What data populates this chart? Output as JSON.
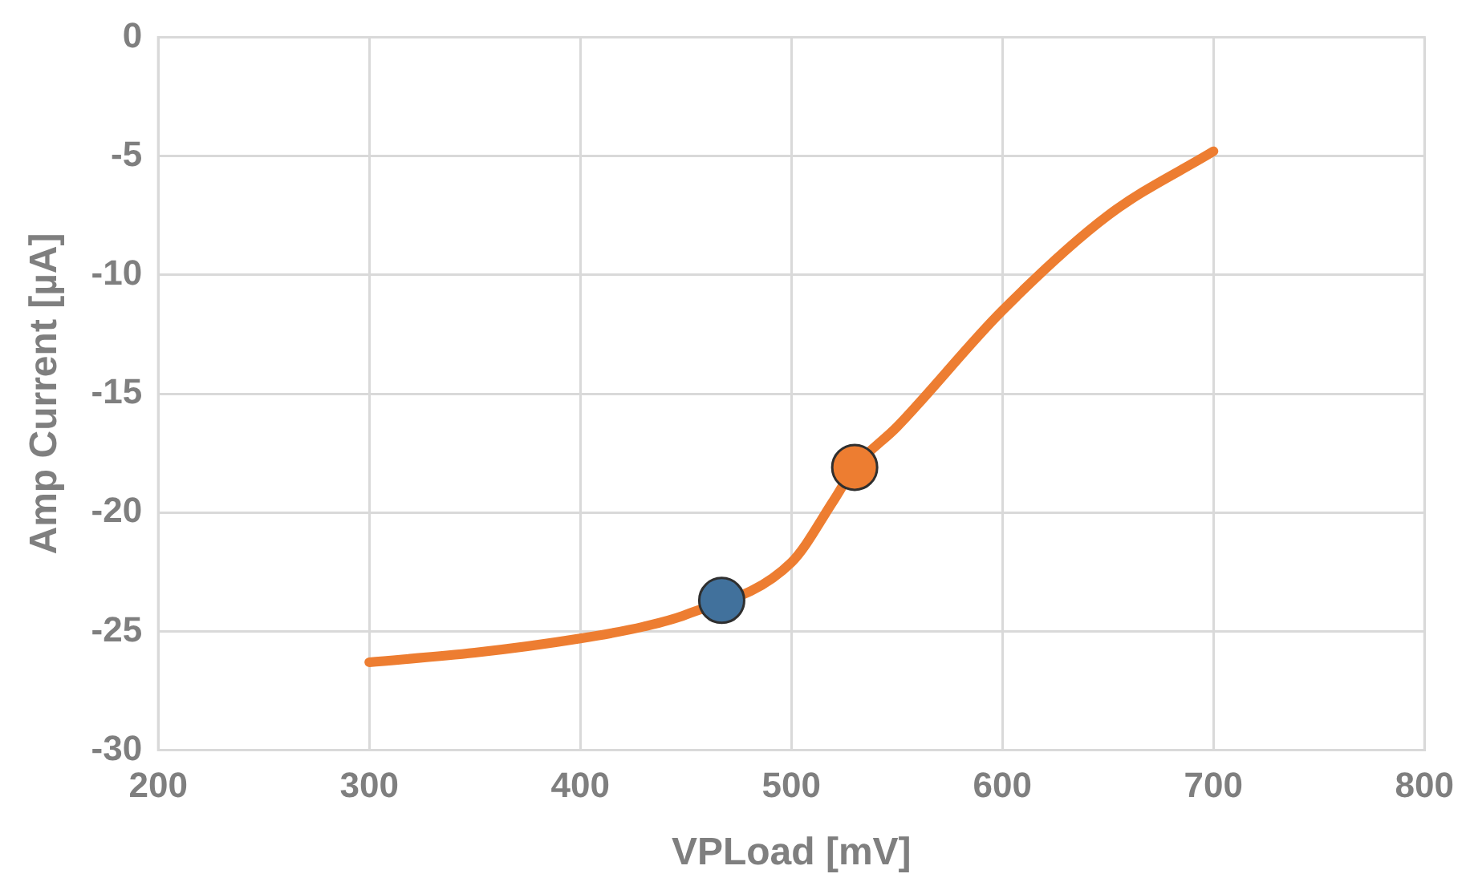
{
  "chart_data": {
    "type": "line",
    "xlabel": "VPLoad [mV]",
    "ylabel": "Amp Current [µA]",
    "xlim": [
      200,
      800
    ],
    "xticks": [
      200,
      300,
      400,
      500,
      600,
      700,
      800
    ],
    "ylim": [
      -30,
      0
    ],
    "yticks": [
      -30,
      -25,
      -20,
      -15,
      -10,
      -5,
      0
    ],
    "grid": true,
    "legend": false,
    "marker": "none",
    "series": [
      {
        "color": "#ed7d31",
        "x": [
          300,
          350,
          400,
          430,
          450,
          500,
          520,
          530,
          550,
          600,
          650,
          700
        ],
        "values": [
          -26.3,
          -25.9,
          -25.3,
          -24.8,
          -24.3,
          -22.1,
          -19.5,
          -18.1,
          -16.4,
          -11.5,
          -7.5,
          -4.8
        ]
      },
      {
        "type": "scatter",
        "marker": "circle",
        "color": "#41719c",
        "x": [
          467
        ],
        "values": [
          -23.7
        ]
      },
      {
        "type": "scatter",
        "marker": "circle",
        "color": "#ed7d31",
        "x": [
          530
        ],
        "values": [
          -18.1
        ]
      }
    ]
  }
}
